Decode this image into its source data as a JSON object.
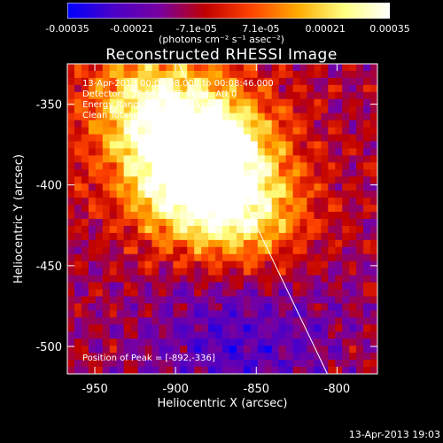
{
  "colorbar": {
    "ticks": [
      "-0.00035",
      "-0.00021",
      "-7.1e-05",
      "7.1e-05",
      "0.00021",
      "0.00035"
    ],
    "units_label": "(photons cm⁻² s⁻¹ asec⁻²)",
    "range": [
      -0.00035,
      0.00035
    ],
    "colors": [
      "#0000ff",
      "#4b00c8",
      "#7800a0",
      "#c00000",
      "#ff4400",
      "#ffaa00",
      "#ffff80",
      "#ffffff"
    ]
  },
  "title": "Reconstructed RHESSI Image",
  "info_lines": [
    "13-Apr-2013 00:02:08.000 to 00:08:46.000",
    "Detectors: 3F 5F 6F 7F 8F 9F, Att 0",
    "Energy Range: 12.0 - 25.0 keV",
    "Clean     Total counts: 8.13E+03"
  ],
  "peak_text": "Position of Peak = [-892,-336]",
  "footer_timestamp": "13-Apr-2013 19:03",
  "chart_data": {
    "type": "heatmap",
    "title": "Reconstructed RHESSI Image",
    "xlabel": "Heliocentric X (arcsec)",
    "ylabel": "Heliocentric Y (arcsec)",
    "xlim": [
      -967,
      -775
    ],
    "ylim": [
      -517,
      -325
    ],
    "x_ticks": [
      -950,
      -900,
      -850,
      -800
    ],
    "y_ticks": [
      -500,
      -450,
      -400,
      -350
    ],
    "peak": {
      "x": -892,
      "y": -336
    },
    "limb_line": [
      [
        -898,
        -325
      ],
      [
        -806,
        -517
      ]
    ],
    "hot_region_centers": [
      [
        -880,
        -375
      ],
      [
        -895,
        -400
      ],
      [
        -920,
        -350
      ],
      [
        -855,
        -420
      ]
    ],
    "grid": false
  }
}
